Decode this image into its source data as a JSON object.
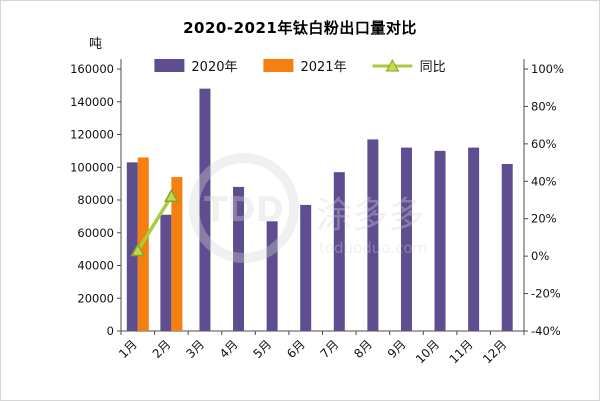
{
  "title": "2020-2021年钛白粉出口量对比",
  "unit_label": "吨",
  "legend": [
    {
      "label": "2020年",
      "type": "bar",
      "color": "#5E4E8F"
    },
    {
      "label": "2021年",
      "type": "bar",
      "color": "#F5800F"
    },
    {
      "label": "同比",
      "type": "line",
      "color": "#A9CC3D"
    }
  ],
  "watermark": {
    "logo": "TDD",
    "text": "涂多多",
    "url": "toduoduo.com"
  },
  "colors": {
    "bar_2020": "#5E4E8F",
    "bar_2021": "#F5800F",
    "yoy_line": "#A9CC3D",
    "yoy_marker_fill": "#C6D94C",
    "yoy_marker_stroke": "#86A32B",
    "axis": "#4d4d4d",
    "watermark_gray": "#d6d6d6"
  },
  "chart_data": {
    "type": "bar",
    "title": "2020-2021年钛白粉出口量对比",
    "categories": [
      "1月",
      "2月",
      "3月",
      "4月",
      "5月",
      "6月",
      "7月",
      "8月",
      "9月",
      "10月",
      "11月",
      "12月"
    ],
    "series": [
      {
        "name": "2020年",
        "type": "bar",
        "axis": "left",
        "values": [
          103000,
          71000,
          148000,
          88000,
          67000,
          77000,
          97000,
          117000,
          112000,
          110000,
          112000,
          102000
        ]
      },
      {
        "name": "2021年",
        "type": "bar",
        "axis": "left",
        "values": [
          106000,
          94000,
          null,
          null,
          null,
          null,
          null,
          null,
          null,
          null,
          null,
          null
        ]
      },
      {
        "name": "同比",
        "type": "line",
        "axis": "right",
        "values": [
          3,
          32,
          null,
          null,
          null,
          null,
          null,
          null,
          null,
          null,
          null,
          null
        ]
      }
    ],
    "left_axis": {
      "label": "吨",
      "min": 0,
      "max": 160000,
      "step": 20000,
      "ticks": [
        "0",
        "20000",
        "40000",
        "60000",
        "80000",
        "100000",
        "120000",
        "140000",
        "160000"
      ]
    },
    "right_axis": {
      "min": -40,
      "max": 100,
      "step": 20,
      "suffix": "%",
      "ticks": [
        "-40%",
        "-20%",
        "0%",
        "20%",
        "40%",
        "60%",
        "80%",
        "100%"
      ]
    },
    "grid": false,
    "legend_position": "top"
  }
}
